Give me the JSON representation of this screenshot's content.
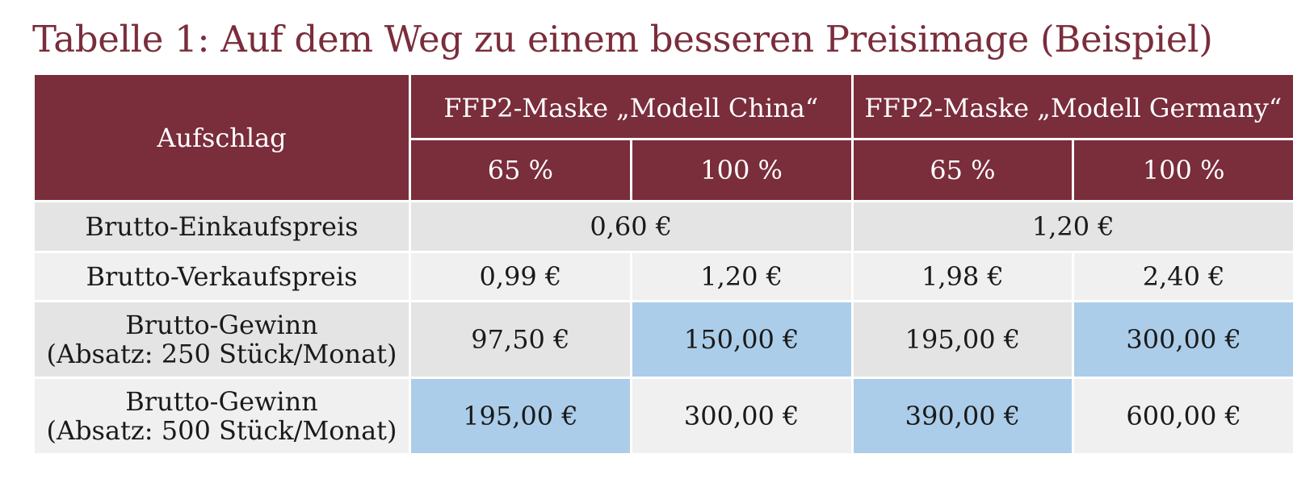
{
  "title": "Tabelle 1: Auf dem Weg zu einem besseren Preisimage (Beispiel)",
  "header": {
    "groups": [
      "FFP2-Maske „Modell China“",
      "FFP2-Maske „Modell Germany“"
    ],
    "row_label": "Aufschlag",
    "markups": [
      "65 %",
      "100 %",
      "65 %",
      "100 %"
    ]
  },
  "rows": [
    {
      "label": "Brutto-Einkaufspreis",
      "merged": [
        "0,60 €",
        "1,20 €"
      ]
    },
    {
      "label": "Brutto-Verkaufspreis",
      "cells": [
        "0,99 €",
        "1,20 €",
        "1,98 €",
        "2,40 €"
      ]
    },
    {
      "label": [
        "Brutto-Gewinn",
        "(Absatz: 250 Stück/Monat)"
      ],
      "cells": [
        "97,50 €",
        "150,00 €",
        "195,00 €",
        "300,00 €"
      ]
    },
    {
      "label": [
        "Brutto-Gewinn",
        "(Absatz: 500 Stück/Monat)"
      ],
      "cells": [
        "195,00 €",
        "300,00 €",
        "390,00 €",
        "600,00 €"
      ]
    }
  ],
  "colors": {
    "header_bg": "#7a2d3b",
    "title": "#7a2d3b",
    "row_dark": "#e4e4e4",
    "row_light": "#f0f0f0",
    "highlight": "#abcde9"
  }
}
